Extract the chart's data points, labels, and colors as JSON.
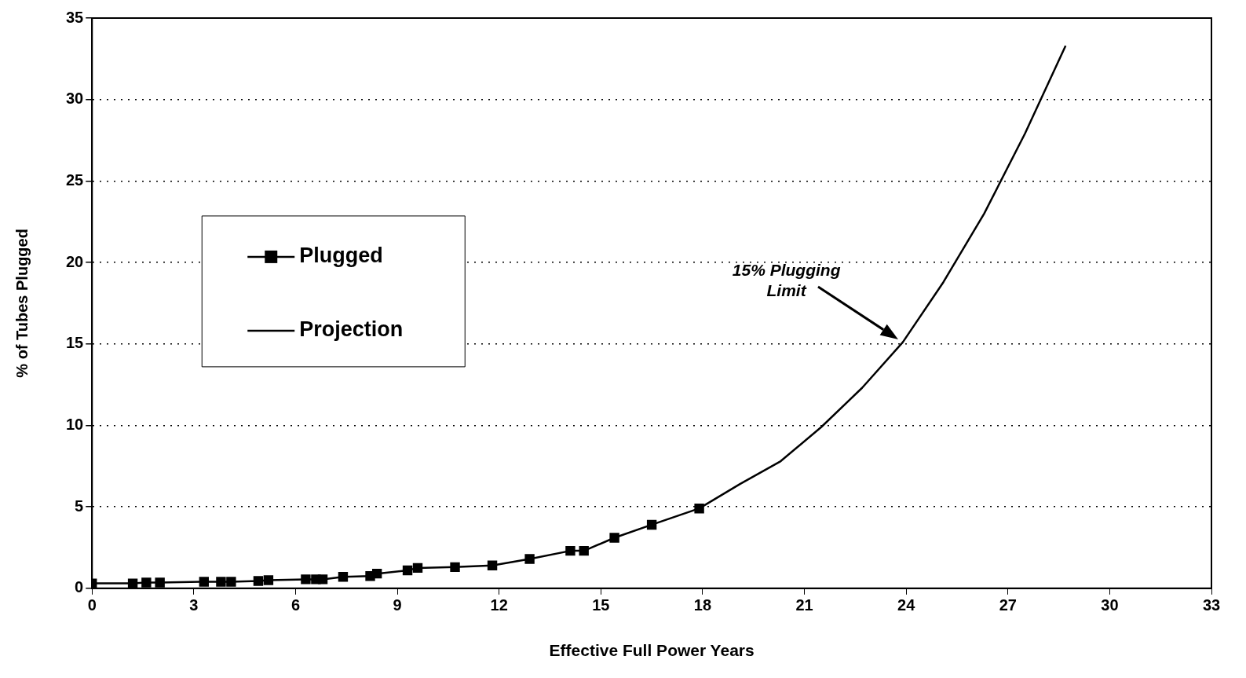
{
  "chart_data": {
    "type": "line",
    "xlabel": "Effective Full Power Years",
    "ylabel": "% of Tubes Plugged",
    "xlim": [
      0,
      33
    ],
    "xticks": [
      0,
      3,
      6,
      9,
      12,
      15,
      18,
      21,
      24,
      27,
      30,
      33
    ],
    "ylim": [
      0,
      35
    ],
    "yticks": [
      0,
      5,
      10,
      15,
      20,
      25,
      30,
      35
    ],
    "grid": "y",
    "legend": "left",
    "annotations": [
      "15% Plugging Limit"
    ],
    "series": [
      {
        "name": "Plugged",
        "color": "#000000",
        "marker": "square",
        "line_style": "solid",
        "x": [
          0,
          1.2,
          1.6,
          2.0,
          3.3,
          3.8,
          4.1,
          4.9,
          5.2,
          6.3,
          6.6,
          6.8,
          7.4,
          8.2,
          8.4,
          9.3,
          9.6,
          10.7,
          11.8,
          12.9,
          14.1,
          14.5,
          15.4,
          16.5,
          17.9
        ],
        "values": [
          0.3,
          0.3,
          0.35,
          0.35,
          0.4,
          0.4,
          0.4,
          0.45,
          0.5,
          0.55,
          0.55,
          0.55,
          0.7,
          0.75,
          0.9,
          1.1,
          1.25,
          1.3,
          1.4,
          1.8,
          2.3,
          2.3,
          3.1,
          3.9,
          4.9
        ]
      },
      {
        "name": "Projection",
        "color": "#000000",
        "marker": "none",
        "line_style": "solid",
        "x": [
          17.9,
          19.1,
          20.3,
          21.5,
          22.7,
          23.9,
          25.1,
          26.3,
          27.5,
          28.7
        ],
        "values": [
          4.9,
          6.4,
          7.8,
          9.9,
          12.3,
          15.1,
          18.8,
          23.0,
          27.9,
          33.3
        ]
      }
    ]
  }
}
